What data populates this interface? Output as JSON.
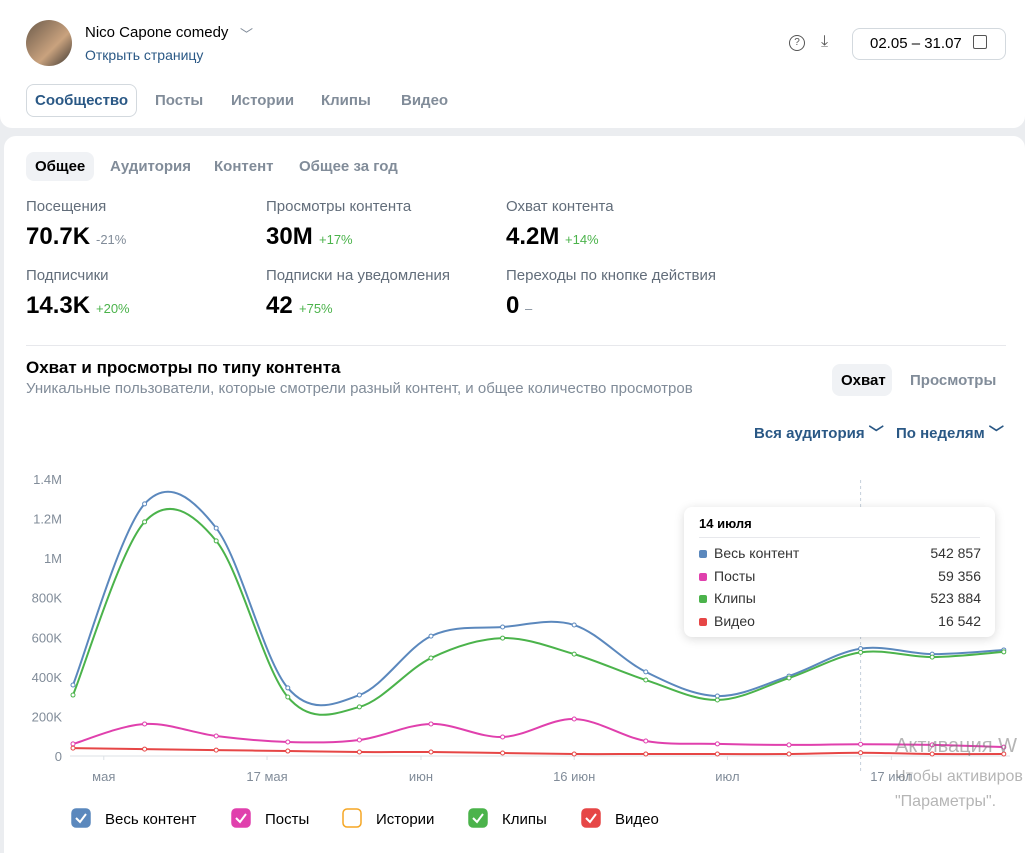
{
  "header": {
    "name": "Nico Capone comedy",
    "link": "Открыть страницу",
    "date_range": "02.05 – 31.07"
  },
  "tabs": [
    "Сообщество",
    "Посты",
    "Истории",
    "Клипы",
    "Видео"
  ],
  "subtabs": [
    "Общее",
    "Аудитория",
    "Контент",
    "Общее за год"
  ],
  "stats": [
    {
      "label": "Посещения",
      "value": "70.7K",
      "change": "-21%"
    },
    {
      "label": "Просмотры контента",
      "value": "30M",
      "change": "+17%"
    },
    {
      "label": "Охват контента",
      "value": "4.2M",
      "change": "+14%"
    },
    {
      "label": "Подписчики",
      "value": "14.3K",
      "change": "+20%"
    },
    {
      "label": "Подписки на уведомления",
      "value": "42",
      "change": "+75%"
    },
    {
      "label": "Переходы по кнопке действия",
      "value": "0",
      "change": "–"
    }
  ],
  "section": {
    "title": "Охват и просмотры по типу контента",
    "subtitle": "Уникальные пользователи, которые смотрели разный контент, и общее количество просмотров",
    "toggle": [
      "Охват",
      "Просмотры"
    ],
    "filters": [
      "Вся аудитория",
      "По неделям"
    ]
  },
  "chart_data": {
    "type": "line",
    "categories": [
      null,
      null,
      null,
      null,
      null,
      null,
      null,
      null,
      null,
      null,
      null,
      "14 июля",
      null,
      null
    ],
    "ylim": [
      0,
      1400000
    ],
    "yticks": [
      0,
      {
        "value": 200000,
        "label": "200K"
      },
      {
        "value": 400000,
        "label": "400K"
      },
      {
        "value": 600000,
        "label": "600K"
      },
      {
        "value": 800000,
        "label": "800K"
      },
      {
        "value": 1000000,
        "label": "1M"
      },
      {
        "value": 1200000,
        "label": "1.2M"
      },
      {
        "value": 1400000,
        "label": "1.4M"
      }
    ],
    "xticks": [
      {
        "value": 0.43,
        "label": "мая"
      },
      {
        "value": 2.71,
        "label": "17 мая"
      },
      {
        "value": 4.86,
        "label": "июн"
      },
      {
        "value": 7,
        "label": "16 июн"
      },
      {
        "value": 9.14,
        "label": "июл"
      },
      {
        "value": 11.43,
        "label": "17 июл"
      }
    ],
    "series": [
      {
        "name": "Весь контент",
        "color": "#5b88bd",
        "checked": true,
        "values": [
          359000,
          1274000,
          1152000,
          344000,
          308000,
          606000,
          652000,
          662000,
          425000,
          303000,
          404000,
          542857,
          515000,
          536000
        ],
        "value_labels": [
          null,
          null,
          null,
          null,
          null,
          null,
          null,
          null,
          null,
          null,
          null,
          "542 857",
          null,
          null
        ]
      },
      {
        "name": "Посты",
        "color": "#e040ad",
        "checked": true,
        "values": [
          61000,
          162000,
          101000,
          71000,
          81000,
          162000,
          96000,
          187000,
          76000,
          61000,
          56000,
          59356,
          56000,
          45000
        ],
        "value_labels": [
          null,
          null,
          null,
          null,
          null,
          null,
          null,
          null,
          null,
          null,
          null,
          "59 356",
          null,
          null
        ]
      },
      {
        "name": "Истории",
        "color": "#f5a623",
        "checked": false,
        "values": [
          null,
          null,
          null,
          null,
          null,
          null,
          null,
          null,
          null,
          null,
          null,
          null,
          null,
          null
        ]
      },
      {
        "name": "Клипы",
        "color": "#4bb34b",
        "checked": true,
        "values": [
          308000,
          1183000,
          1087000,
          298000,
          248000,
          495000,
          596000,
          515000,
          384000,
          283000,
          394000,
          523884,
          500000,
          526000
        ],
        "value_labels": [
          null,
          null,
          null,
          null,
          null,
          null,
          null,
          null,
          null,
          null,
          null,
          "523 884",
          null,
          null
        ]
      },
      {
        "name": "Видео",
        "color": "#e64646",
        "checked": true,
        "values": [
          40000,
          35000,
          30000,
          25000,
          20000,
          20000,
          15000,
          10000,
          10000,
          10000,
          10000,
          16542,
          10000,
          10000
        ],
        "value_labels": [
          null,
          null,
          null,
          null,
          null,
          null,
          null,
          null,
          null,
          null,
          null,
          "16 542",
          null,
          null
        ]
      }
    ],
    "tooltip_index": 11
  },
  "watermark": [
    "Активация W",
    "Чтобы активиров",
    "\"Параметры\"."
  ]
}
